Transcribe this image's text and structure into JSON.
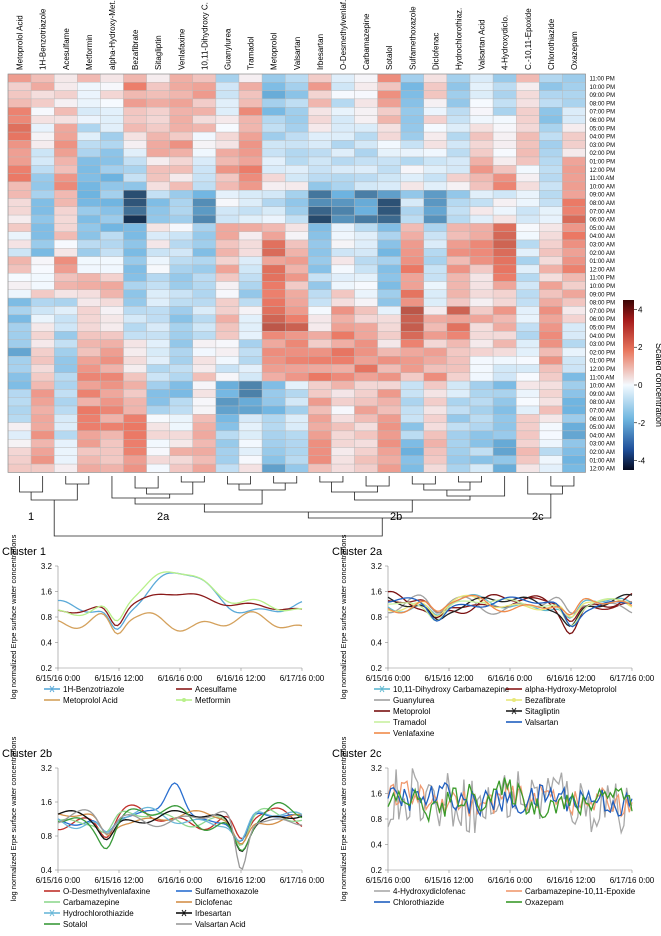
{
  "chart_data": [
    {
      "type": "heatmap",
      "title": "",
      "colorbar": {
        "label": "Scaled concentration",
        "ticks": [
          "4",
          "2",
          "0",
          "-2",
          "-4"
        ],
        "range": [
          -4.5,
          4.5
        ]
      },
      "columns": [
        "Metoprolol Acid",
        "1H-Benzotriazole",
        "Acesulfame",
        "Metformin",
        "alpha-Hydroxy-Met.",
        "Bezafibrate",
        "Sitagliptin",
        "Venlafaxine",
        "10,11-Dihydroxy C.",
        "Guanylurea",
        "Tramadol",
        "Metoprolol",
        "Valsartan",
        "Irbesartan",
        "O-Desmethylvenlaf.",
        "Carbamazepine",
        "Sotalol",
        "Sulfamethoxazole",
        "Diclofenac",
        "Hydrochlorothiaz.",
        "Valsartan Acid",
        "4-Hydroxydiclo.",
        "C.-10,11-Epoxide",
        "Chlorothiazide",
        "Oxazepam"
      ],
      "rows": [
        "11:00 PM",
        "10:00 PM",
        "09:00 PM",
        "08:00 PM",
        "07:00 PM",
        "06:00 PM",
        "05:00 PM",
        "04:00 PM",
        "03:00 PM",
        "02:00 PM",
        "01:00 PM",
        "12:00 PM",
        "11:00 AM",
        "10:00 AM",
        "09:00 AM",
        "08:00 AM",
        "07:00 AM",
        "06:00 AM",
        "05:00 AM",
        "04:00 AM",
        "03:00 AM",
        "02:00 AM",
        "01:00 AM",
        "12:00 AM",
        "11:00 PM",
        "10:00 PM",
        "09:00 PM",
        "08:00 PM",
        "07:00 PM",
        "06:00 PM",
        "05:00 PM",
        "04:00 PM",
        "03:00 PM",
        "02:00 PM",
        "01:00 PM",
        "12:00 PM",
        "11:00 AM",
        "10:00 AM",
        "09:00 AM",
        "08:00 AM",
        "07:00 AM",
        "06:00 AM",
        "05:00 AM",
        "04:00 AM",
        "03:00 AM",
        "02:00 AM",
        "01:00 AM",
        "12:00 AM"
      ],
      "dendrogram_clusters": [
        "1",
        "2a",
        "2b",
        "2c"
      ]
    },
    {
      "type": "line",
      "title": "Cluster 1",
      "ylabel": "log normalized Erpe surface water concentrations",
      "yticks": [
        "3.2",
        "1.6",
        "0.8",
        "0.4",
        "0.2"
      ],
      "ylim": [
        0.2,
        3.2
      ],
      "xticks": [
        "6/15/16 0:00",
        "6/15/16 12:00",
        "6/16/16 0:00",
        "6/16/16 12:00",
        "6/17/16 0:00"
      ],
      "series": [
        {
          "name": "1H-Benzotriazole",
          "color": "#5aa9d8",
          "marker": "x"
        },
        {
          "name": "Acesulfame",
          "color": "#8b1a1a",
          "marker": "line"
        },
        {
          "name": "Metoprolol Acid",
          "color": "#d4a15c",
          "marker": "line"
        },
        {
          "name": "Metformin",
          "color": "#b8f08a",
          "marker": "dot"
        }
      ]
    },
    {
      "type": "line",
      "title": "Cluster 2a",
      "ylabel": "log normalized Erpe surface water concentrations",
      "yticks": [
        "3.2",
        "1.6",
        "0.8",
        "0.4",
        "0.2"
      ],
      "ylim": [
        0.2,
        3.2
      ],
      "xticks": [
        "6/15/16 0:00",
        "6/15/16 12:00",
        "6/16/16 0:00",
        "6/16/16 12:00",
        "6/17/16 0:00"
      ],
      "series": [
        {
          "name": "10,11-Dihydroxy Carbamazepine",
          "color": "#5fb8d0",
          "marker": "x"
        },
        {
          "name": "alpha-Hydroxy-Metoprolol",
          "color": "#8b1a1a",
          "marker": "line"
        },
        {
          "name": "Guanylurea",
          "color": "#a0a0a0",
          "marker": "line"
        },
        {
          "name": "Bezafibrate",
          "color": "#e8e87a",
          "marker": "dot"
        },
        {
          "name": "Metoprolol",
          "color": "#7a1010",
          "marker": "line"
        },
        {
          "name": "Sitagliptin",
          "color": "#222222",
          "marker": "x"
        },
        {
          "name": "Tramadol",
          "color": "#c8f0a0",
          "marker": "line"
        },
        {
          "name": "Valsartan",
          "color": "#1f5fbf",
          "marker": "line"
        },
        {
          "name": "Venlafaxine",
          "color": "#f08a4a",
          "marker": "line"
        }
      ]
    },
    {
      "type": "line",
      "title": "Cluster 2b",
      "ylabel": "log normalized Erpe surface water concentrations",
      "yticks": [
        "3.2",
        "1.6",
        "0.8",
        "0.4"
      ],
      "ylim": [
        0.4,
        3.2
      ],
      "xticks": [
        "6/15/16 0:00",
        "6/15/16 12:00",
        "6/16/16 0:00",
        "6/16/16 12:00",
        "6/17/16 0:00"
      ],
      "series": [
        {
          "name": "O-Desmethylvenlafaxine",
          "color": "#c0302a",
          "marker": "line"
        },
        {
          "name": "Sulfamethoxazole",
          "color": "#2a6fd0",
          "marker": "line"
        },
        {
          "name": "Carbamazepine",
          "color": "#8fd88f",
          "marker": "line"
        },
        {
          "name": "Diclofenac",
          "color": "#d4904a",
          "marker": "line"
        },
        {
          "name": "Hydrochlorothiazide",
          "color": "#6ab8d8",
          "marker": "x"
        },
        {
          "name": "Irbesartan",
          "color": "#111111",
          "marker": "x"
        },
        {
          "name": "Sotalol",
          "color": "#3a9a3a",
          "marker": "line"
        },
        {
          "name": "Valsartan Acid",
          "color": "#9a9a9a",
          "marker": "line"
        }
      ]
    },
    {
      "type": "line",
      "title": "Cluster 2c",
      "ylabel": "log normalized Erpe surface water concentrations",
      "yticks": [
        "3.2",
        "1.6",
        "0.8",
        "0.4",
        "0.2"
      ],
      "ylim": [
        0.2,
        3.2
      ],
      "xticks": [
        "6/15/16 0:00",
        "6/15/16 12:00",
        "6/16/16 0:00",
        "6/16/16 12:00",
        "6/17/16 0:00"
      ],
      "series": [
        {
          "name": "4-Hydroxydiclofenac",
          "color": "#a8a8a8",
          "marker": "line"
        },
        {
          "name": "Carbamazepine-10,11-Epoxide",
          "color": "#f09a70",
          "marker": "line"
        },
        {
          "name": "Chlorothiazide",
          "color": "#1f5fbf",
          "marker": "line"
        },
        {
          "name": "Oxazepam",
          "color": "#3a9a2a",
          "marker": "line"
        }
      ]
    }
  ]
}
